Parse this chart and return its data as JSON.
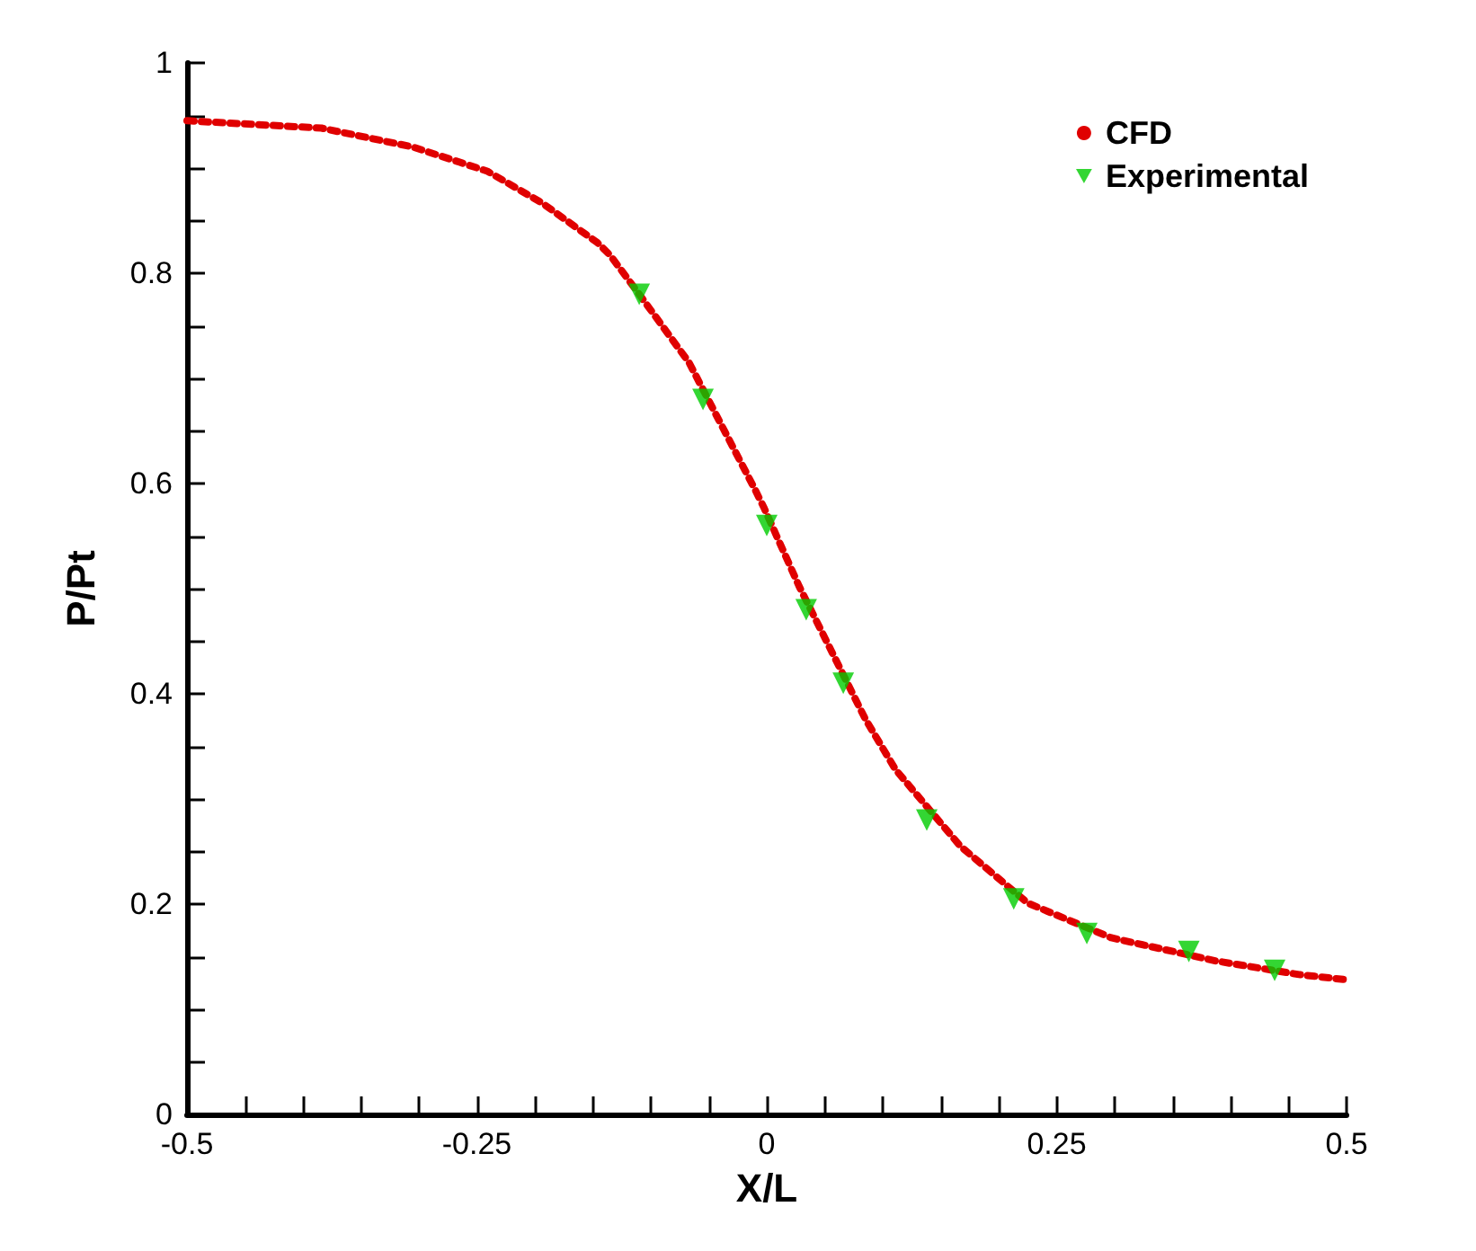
{
  "chart_data": {
    "type": "line",
    "xlabel": "X/L",
    "ylabel": "P/Pt",
    "xlim": [
      -0.5,
      0.5
    ],
    "ylim": [
      0,
      1
    ],
    "xticks": [
      -0.5,
      {
        "value": -0.45,
        "label": null
      },
      {
        "value": -0.4,
        "label": null
      },
      {
        "value": -0.35,
        "label": null
      },
      {
        "value": -0.3,
        "label": null
      },
      -0.25,
      {
        "value": -0.2,
        "label": null
      },
      {
        "value": -0.15,
        "label": null
      },
      {
        "value": -0.1,
        "label": null
      },
      {
        "value": -0.05,
        "label": null
      },
      0,
      {
        "value": 0.05,
        "label": null
      },
      {
        "value": 0.1,
        "label": null
      },
      {
        "value": 0.15,
        "label": null
      },
      {
        "value": 0.2,
        "label": null
      },
      0.25,
      {
        "value": 0.3,
        "label": null
      },
      {
        "value": 0.35,
        "label": null
      },
      {
        "value": 0.4,
        "label": null
      },
      {
        "value": 0.45,
        "label": null
      },
      0.5
    ],
    "yticks": [
      0,
      {
        "value": 0.05,
        "label": null
      },
      {
        "value": 0.1,
        "label": null
      },
      {
        "value": 0.15,
        "label": null
      },
      0.2,
      {
        "value": 0.25,
        "label": null
      },
      {
        "value": 0.3,
        "label": null
      },
      {
        "value": 0.35,
        "label": null
      },
      0.4,
      {
        "value": 0.45,
        "label": null
      },
      {
        "value": 0.5,
        "label": null
      },
      {
        "value": 0.55,
        "label": null
      },
      0.6,
      {
        "value": 0.65,
        "label": null
      },
      {
        "value": 0.7,
        "label": null
      },
      {
        "value": 0.75,
        "label": null
      },
      0.8,
      {
        "value": 0.85,
        "label": null
      },
      {
        "value": 0.9,
        "label": null
      },
      {
        "value": 0.95,
        "label": null
      },
      1
    ],
    "grid": false,
    "legend": "top right",
    "series": [
      {
        "name": "CFD",
        "line_style": "dotted",
        "marker": "none",
        "color": "#e00000",
        "x": [
          -0.5,
          -0.384,
          -0.305,
          -0.241,
          -0.194,
          -0.146,
          -0.135,
          -0.11,
          -0.067,
          -0.036,
          -0.01,
          -0.002,
          0.028,
          0.085,
          0.111,
          0.167,
          0.225,
          0.297,
          0.387,
          0.459,
          0.5
        ],
        "values": [
          0.945,
          0.938,
          0.92,
          0.897,
          0.867,
          0.829,
          0.817,
          0.78,
          0.715,
          0.649,
          0.594,
          0.576,
          0.502,
          0.376,
          0.328,
          0.255,
          0.201,
          0.168,
          0.146,
          0.133,
          0.128
        ]
      },
      {
        "name": "Experimental",
        "type": "scatter",
        "marker": "triangle",
        "color": "#00cc00",
        "x": [
          -0.11,
          -0.055,
          0.0,
          0.034,
          0.066,
          0.138,
          0.213,
          0.276,
          0.364,
          0.438
        ],
        "values": [
          0.78,
          0.68,
          0.56,
          0.48,
          0.41,
          0.28,
          0.205,
          0.172,
          0.155,
          0.137
        ]
      }
    ]
  }
}
